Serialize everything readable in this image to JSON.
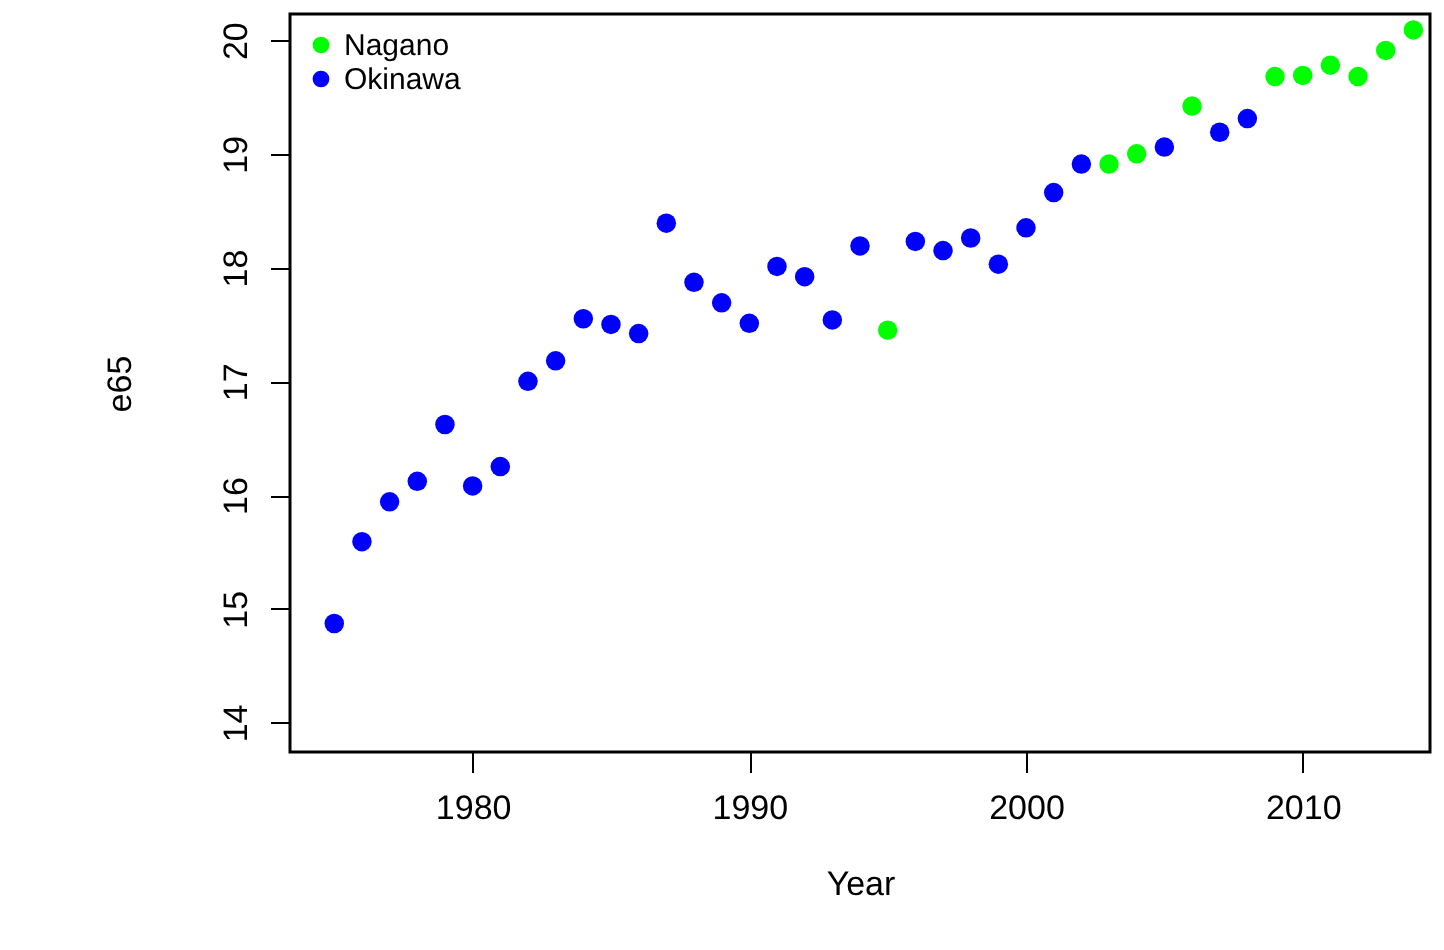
{
  "chart_data": {
    "type": "scatter",
    "xlabel": "Year",
    "ylabel": "e65",
    "xlim": [
      1973.4,
      2014.6
    ],
    "ylim": [
      13.74,
      20.23
    ],
    "xticks": [
      1980,
      1990,
      2000,
      2010
    ],
    "yticks": [
      14,
      15,
      16,
      17,
      18,
      19,
      20
    ],
    "grid": false,
    "legend": "top left",
    "marker": "circle",
    "series": [
      {
        "name": "Nagano",
        "color": "#00ff00",
        "x": [
          1995,
          2003,
          2004,
          2006,
          2009,
          2010,
          2011,
          2012,
          2013,
          2014
        ],
        "values": [
          17.45,
          18.91,
          19.0,
          19.42,
          19.68,
          19.69,
          19.78,
          19.68,
          19.91,
          20.09
        ]
      },
      {
        "name": "Okinawa",
        "color": "#0000ff",
        "x": [
          1975,
          1976,
          1977,
          1978,
          1979,
          1980,
          1981,
          1982,
          1983,
          1984,
          1985,
          1986,
          1987,
          1988,
          1989,
          1990,
          1991,
          1992,
          1993,
          1994,
          1996,
          1997,
          1998,
          1999,
          2000,
          2001,
          2002,
          2005,
          2007,
          2008
        ],
        "values": [
          14.87,
          15.59,
          15.94,
          16.12,
          16.62,
          16.08,
          16.25,
          17.0,
          17.18,
          17.55,
          17.5,
          17.42,
          18.39,
          17.87,
          17.69,
          17.51,
          18.01,
          17.92,
          17.54,
          18.19,
          18.23,
          18.15,
          18.26,
          18.03,
          18.35,
          18.66,
          18.91,
          19.06,
          19.19,
          19.31
        ]
      }
    ]
  }
}
